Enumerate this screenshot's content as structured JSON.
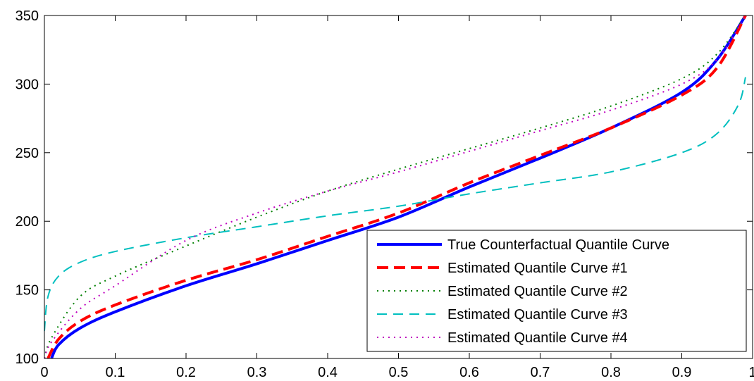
{
  "chart_data": {
    "type": "line",
    "title": "",
    "xlabel": "",
    "ylabel": "",
    "xlim": [
      0,
      1
    ],
    "ylim": [
      100,
      350
    ],
    "xticks": [
      "0",
      "0.1",
      "0.2",
      "0.3",
      "0.4",
      "0.5",
      "0.6",
      "0.7",
      "0.8",
      "0.9",
      "1"
    ],
    "yticks": [
      "100",
      "150",
      "200",
      "250",
      "300",
      "350"
    ],
    "grid": false,
    "legend_position": "bottom-right",
    "series": [
      {
        "name": "True Counterfactual Quantile Curve",
        "color": "#0000ff",
        "style": "solid",
        "x": [
          0.01,
          0.02,
          0.05,
          0.1,
          0.2,
          0.3,
          0.4,
          0.5,
          0.6,
          0.7,
          0.8,
          0.9,
          0.95,
          0.99
        ],
        "y": [
          100,
          110,
          122,
          134,
          153,
          169,
          186,
          203,
          225,
          246,
          268,
          294,
          318,
          350
        ]
      },
      {
        "name": "Estimated Quantile Curve #1",
        "color": "#ff0000",
        "style": "dashed",
        "x": [
          0.005,
          0.02,
          0.05,
          0.1,
          0.2,
          0.3,
          0.4,
          0.5,
          0.6,
          0.7,
          0.8,
          0.9,
          0.95,
          0.99
        ],
        "y": [
          100,
          114,
          127,
          139,
          157,
          172,
          189,
          206,
          228,
          248,
          268,
          292,
          312,
          350
        ]
      },
      {
        "name": "Estimated Quantile Curve #2",
        "color": "#008000",
        "style": "dotted",
        "x": [
          0.0,
          0.01,
          0.05,
          0.1,
          0.2,
          0.3,
          0.4,
          0.5,
          0.6,
          0.7,
          0.8,
          0.9,
          0.95,
          0.99
        ],
        "y": [
          100,
          115,
          145,
          160,
          182,
          203,
          222,
          238,
          253,
          268,
          284,
          304,
          322,
          350
        ]
      },
      {
        "name": "Estimated Quantile Curve #3",
        "color": "#00bfbf",
        "style": "dashed",
        "x": [
          0.0,
          0.005,
          0.02,
          0.05,
          0.1,
          0.2,
          0.3,
          0.4,
          0.5,
          0.6,
          0.7,
          0.8,
          0.9,
          0.95,
          0.98,
          0.99
        ],
        "y": [
          120,
          145,
          160,
          170,
          178,
          188,
          196,
          204,
          211,
          220,
          228,
          236,
          250,
          264,
          285,
          305
        ]
      },
      {
        "name": "Estimated Quantile Curve #4",
        "color": "#bf00bf",
        "style": "dotted",
        "x": [
          0.0,
          0.01,
          0.05,
          0.1,
          0.2,
          0.3,
          0.4,
          0.5,
          0.6,
          0.7,
          0.8,
          0.9,
          0.95,
          0.99
        ],
        "y": [
          100,
          112,
          136,
          153,
          186,
          206,
          222,
          236,
          251,
          266,
          281,
          300,
          318,
          350
        ]
      }
    ]
  }
}
